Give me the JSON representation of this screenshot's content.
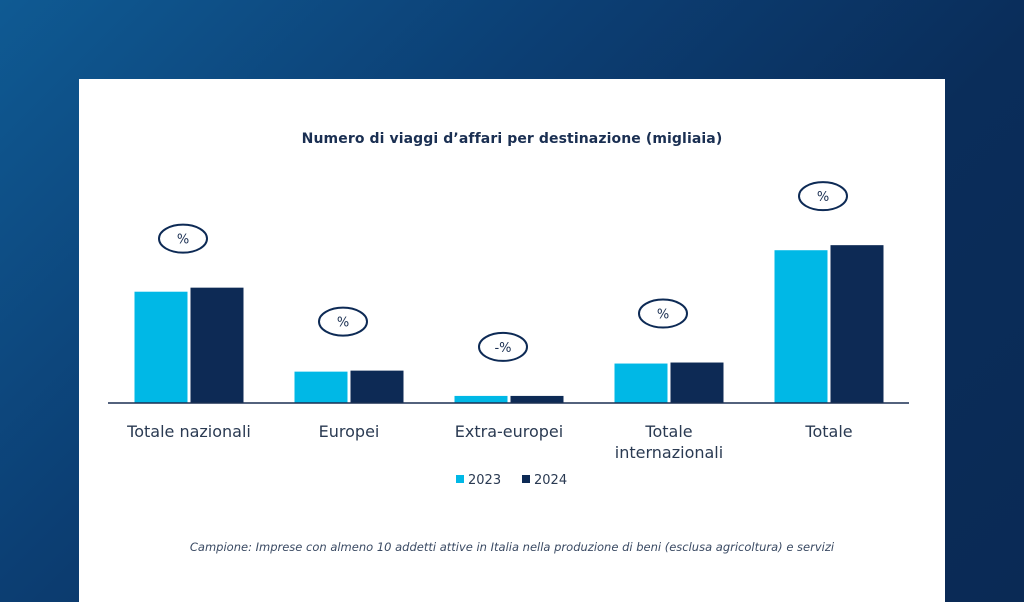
{
  "colors": {
    "series_2023": "#00b8e6",
    "series_2024": "#0d2a55",
    "axis": "#1a2f52",
    "badge_stroke": "#0d2a55"
  },
  "chart_data": {
    "type": "bar",
    "title": "Numero di viaggi d’affari per destinazione (migliaia)",
    "categories": [
      "Totale nazionali",
      "Europei",
      "Extra-europei",
      "Totale internazionali",
      "Totale"
    ],
    "category_lines": [
      [
        "Totale nazionali"
      ],
      [
        "Europei"
      ],
      [
        "Extra-europei"
      ],
      [
        "Totale",
        "internazionali"
      ],
      [
        "Totale"
      ]
    ],
    "series": [
      {
        "name": "2023",
        "values": [
          1100,
          310,
          70,
          390,
          1510
        ]
      },
      {
        "name": "2024",
        "values": [
          1140,
          320,
          70,
          400,
          1560
        ]
      }
    ],
    "badges": [
      "%",
      "%",
      "-%",
      "%",
      "%"
    ],
    "ylim": [
      0,
      1700
    ],
    "grid": false,
    "legend_position": "bottom-center",
    "note": "Campione: Imprese con almeno 10 addetti attive in Italia nella produzione di beni (esclusa agricoltura) e servizi"
  }
}
